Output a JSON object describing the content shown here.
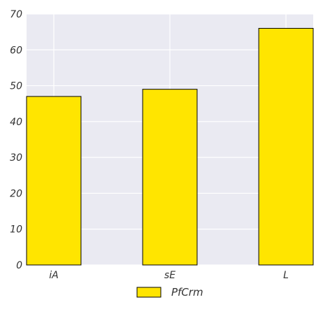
{
  "chart_data": {
    "type": "bar",
    "categories": [
      "iA",
      "sE",
      "L"
    ],
    "series": [
      {
        "name": "PfCrm",
        "values": [
          47,
          49,
          66
        ],
        "color": "#FFE500"
      }
    ],
    "title": "",
    "xlabel": "",
    "ylabel": "",
    "ylim": [
      0,
      70
    ],
    "yticks": [
      0,
      10,
      20,
      30,
      40,
      50,
      60,
      70
    ],
    "grid": true,
    "legend_position": "bottom-center",
    "colors": {
      "plot_background": "#EAEAF2",
      "grid": "#FFFFFF",
      "bar_edge": "#000000"
    }
  }
}
